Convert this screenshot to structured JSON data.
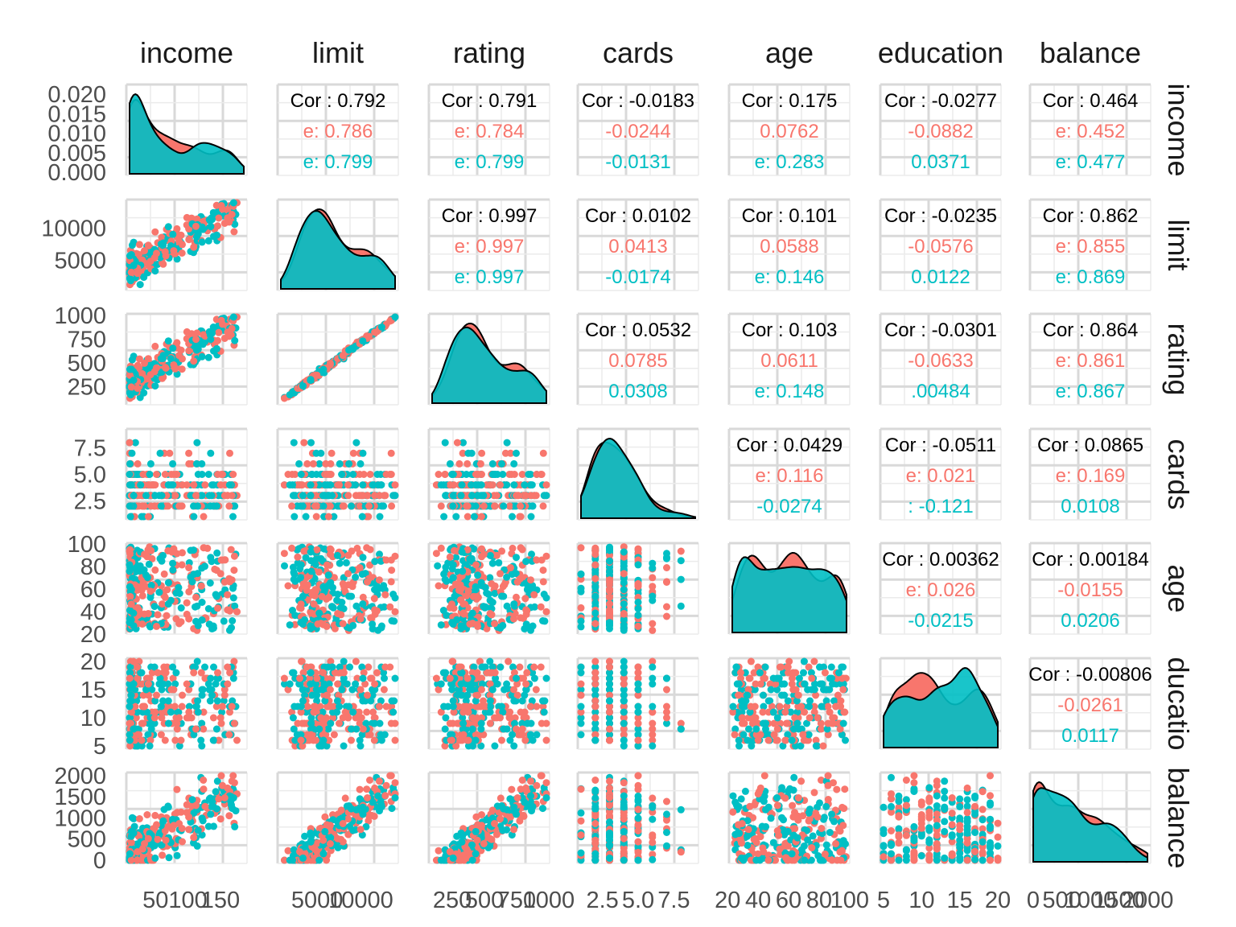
{
  "chart_data": {
    "type": "scatter-matrix",
    "variables": [
      "income",
      "limit",
      "rating",
      "cards",
      "age",
      "education",
      "balance"
    ],
    "group_colors": [
      "#F8766D",
      "#00BFC4"
    ],
    "ranges": {
      "income": [
        10,
        186
      ],
      "limit": [
        855,
        13913
      ],
      "rating": [
        93,
        982
      ],
      "cards": [
        1,
        9
      ],
      "age": [
        23,
        98
      ],
      "education": [
        5,
        20
      ],
      "balance": [
        0,
        1999
      ]
    },
    "axis_ticks": {
      "income": [
        "50",
        "100",
        "150"
      ],
      "limit": [
        "5000",
        "10000"
      ],
      "rating": [
        "250",
        "500",
        "750",
        "1000"
      ],
      "cards": [
        "2.5",
        "5.0",
        "7.5"
      ],
      "age": [
        "20",
        "40",
        "60",
        "80",
        "100"
      ],
      "education": [
        "5",
        "10",
        "15",
        "20"
      ],
      "balance": [
        "0",
        "500",
        "1000",
        "1500",
        "2000"
      ]
    },
    "density_ticks": [
      "0.000",
      "0.005",
      "0.010",
      "0.015",
      "0.020"
    ],
    "row_ticks": {
      "limit": [
        "5000",
        "10000"
      ],
      "rating": [
        "250",
        "500",
        "750",
        "1000"
      ],
      "cards": [
        "2.5",
        "5.0",
        "7.5"
      ],
      "age": [
        "20",
        "40",
        "60",
        "80",
        "100"
      ],
      "education": [
        "5",
        "10",
        "15",
        "20"
      ],
      "balance": [
        "0",
        "500",
        "1000",
        "1500",
        "2000"
      ]
    },
    "correlations": [
      {
        "row": 0,
        "col": 1,
        "total": "Cor : 0.792",
        "g1": "e: 0.786",
        "g2": "e: 0.799"
      },
      {
        "row": 0,
        "col": 2,
        "total": "Cor : 0.791",
        "g1": "e: 0.784",
        "g2": "e: 0.799"
      },
      {
        "row": 0,
        "col": 3,
        "total": "Cor : -0.0183",
        "g1": "-0.0244",
        "g2": "-0.0131"
      },
      {
        "row": 0,
        "col": 4,
        "total": "Cor : 0.175",
        "g1": "0.0762",
        "g2": "e: 0.283"
      },
      {
        "row": 0,
        "col": 5,
        "total": "Cor : -0.0277",
        "g1": "-0.0882",
        "g2": "0.0371"
      },
      {
        "row": 0,
        "col": 6,
        "total": "Cor : 0.464",
        "g1": "e: 0.452",
        "g2": "e: 0.477"
      },
      {
        "row": 1,
        "col": 2,
        "total": "Cor : 0.997",
        "g1": "e: 0.997",
        "g2": "e: 0.997"
      },
      {
        "row": 1,
        "col": 3,
        "total": "Cor : 0.0102",
        "g1": "0.0413",
        "g2": "-0.0174"
      },
      {
        "row": 1,
        "col": 4,
        "total": "Cor : 0.101",
        "g1": "0.0588",
        "g2": "e: 0.146"
      },
      {
        "row": 1,
        "col": 5,
        "total": "Cor : -0.0235",
        "g1": "-0.0576",
        "g2": "0.0122"
      },
      {
        "row": 1,
        "col": 6,
        "total": "Cor : 0.862",
        "g1": "e: 0.855",
        "g2": "e: 0.869"
      },
      {
        "row": 2,
        "col": 3,
        "total": "Cor : 0.0532",
        "g1": "0.0785",
        "g2": "0.0308"
      },
      {
        "row": 2,
        "col": 4,
        "total": "Cor : 0.103",
        "g1": "0.0611",
        "g2": "e: 0.148"
      },
      {
        "row": 2,
        "col": 5,
        "total": "Cor : -0.0301",
        "g1": "-0.0633",
        "g2": ".00484"
      },
      {
        "row": 2,
        "col": 6,
        "total": "Cor : 0.864",
        "g1": "e: 0.861",
        "g2": "e: 0.867"
      },
      {
        "row": 3,
        "col": 4,
        "total": "Cor : 0.0429",
        "g1": "e: 0.116",
        "g2": "-0.0274"
      },
      {
        "row": 3,
        "col": 5,
        "total": "Cor : -0.0511",
        "g1": "e: 0.021",
        "g2": ": -0.121"
      },
      {
        "row": 3,
        "col": 6,
        "total": "Cor : 0.0865",
        "g1": "e: 0.169",
        "g2": "0.0108"
      },
      {
        "row": 4,
        "col": 5,
        "total": "Cor : 0.00362",
        "g1": "e: 0.026",
        "g2": "-0.0215"
      },
      {
        "row": 4,
        "col": 6,
        "total": "Cor : 0.00184",
        "g1": "-0.0155",
        "g2": "0.0206"
      },
      {
        "row": 5,
        "col": 6,
        "total": "Cor : -0.00806",
        "g1": "-0.0261",
        "g2": "0.0117"
      }
    ],
    "right_strip_labels": [
      "income",
      "limit",
      "rating",
      "cards",
      "age",
      "ducatio",
      "balance"
    ],
    "bottom_tick_labels": [
      [
        "50",
        "100",
        "150"
      ],
      [
        "5000",
        "10000"
      ],
      [
        "250",
        "500",
        "750",
        "1000"
      ],
      [
        "2.5",
        "5.0",
        "7.5"
      ],
      [
        "20",
        "40",
        "60",
        "80",
        "100"
      ],
      [
        "5",
        "10",
        "15",
        "20"
      ],
      [
        "0",
        "500",
        "1000",
        "1500",
        "2000"
      ]
    ],
    "grid": true
  }
}
